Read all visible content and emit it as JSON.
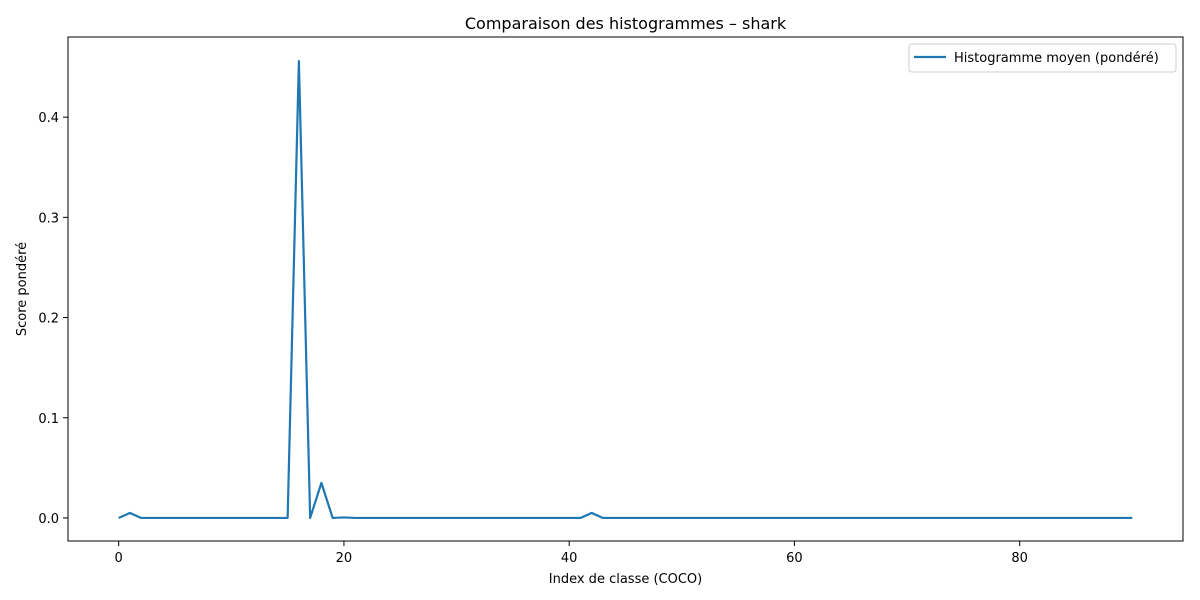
{
  "chart_data": {
    "type": "line",
    "title": "Comparaison des histogrammes – shark",
    "xlabel": "Index de classe (COCO)",
    "ylabel": "Score pondéré",
    "xlim": [
      -4.5,
      94.5
    ],
    "ylim": [
      -0.023,
      0.48
    ],
    "xticks": [
      0,
      20,
      40,
      60,
      80
    ],
    "yticks": [
      0.0,
      0.1,
      0.2,
      0.3,
      0.4
    ],
    "xtick_labels": [
      "0",
      "20",
      "40",
      "60",
      "80"
    ],
    "ytick_labels": [
      "0.0",
      "0.1",
      "0.2",
      "0.3",
      "0.4"
    ],
    "grid": false,
    "legend_position": "top-right",
    "colors": {
      "series": "#1f77b4"
    },
    "series": [
      {
        "name": "Histogramme moyen (pondéré)",
        "x": [
          0,
          1,
          2,
          3,
          4,
          5,
          6,
          7,
          8,
          9,
          10,
          11,
          12,
          13,
          14,
          15,
          16,
          17,
          18,
          19,
          20,
          21,
          22,
          23,
          24,
          25,
          26,
          27,
          28,
          29,
          30,
          31,
          32,
          33,
          34,
          35,
          36,
          37,
          38,
          39,
          40,
          41,
          42,
          43,
          44,
          45,
          46,
          47,
          48,
          49,
          50,
          51,
          52,
          53,
          54,
          55,
          56,
          57,
          58,
          59,
          60,
          61,
          62,
          63,
          64,
          65,
          66,
          67,
          68,
          69,
          70,
          71,
          72,
          73,
          74,
          75,
          76,
          77,
          78,
          79,
          80,
          81,
          82,
          83,
          84,
          85,
          86,
          87,
          88,
          89,
          90
        ],
        "values": [
          0,
          0.005,
          0,
          0,
          0,
          0,
          0,
          0,
          0,
          0,
          0,
          0,
          0,
          0,
          0,
          0,
          0.456,
          0,
          0.035,
          0,
          0.0005,
          0,
          0,
          0,
          0,
          0,
          0,
          0,
          0,
          0,
          0,
          0,
          0,
          0,
          0,
          0,
          0,
          0,
          0,
          0,
          0,
          0,
          0.005,
          0,
          0,
          0,
          0,
          0,
          0,
          0,
          0,
          0,
          0,
          0,
          0,
          0,
          0,
          0,
          0,
          0,
          0,
          0,
          0,
          0,
          0,
          0,
          0,
          0,
          0,
          0,
          0,
          0,
          0,
          0,
          0,
          0,
          0,
          0,
          0,
          0,
          0,
          0,
          0,
          0,
          0,
          0,
          0,
          0,
          0,
          0,
          0
        ]
      }
    ]
  }
}
